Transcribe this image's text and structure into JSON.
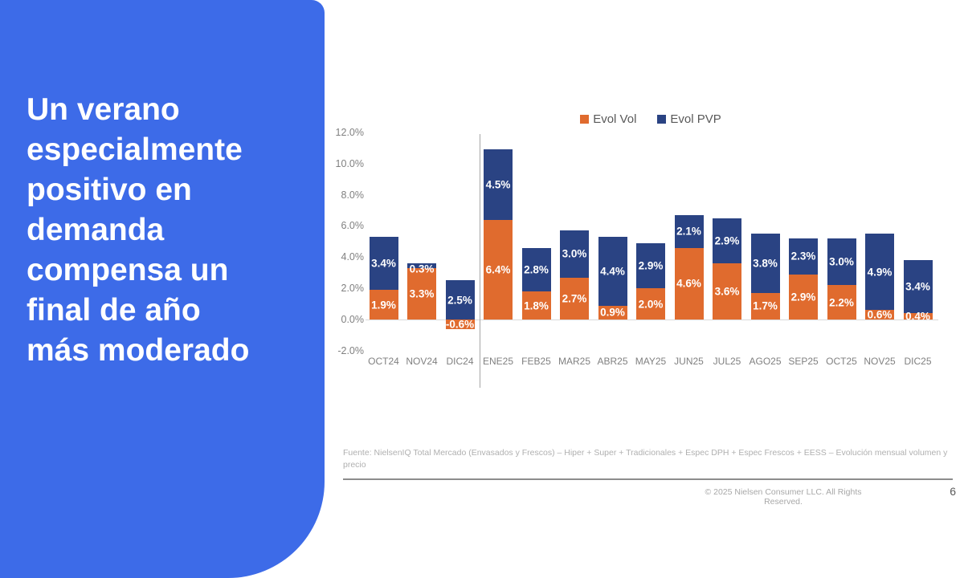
{
  "slide": {
    "title": "Un verano\nespecialmente\npositivo en\ndemanda\ncompensa un\nfinal de año\nmás moderado",
    "footer_source": "Fuente: NielsenIQ Total Mercado (Envasados y Frescos) – Hiper + Super + Tradicionales + Espec DPH + Espec Frescos + EESS – Evolución mensual volumen y precio",
    "copyright": "© 2025 Nielsen Consumer LLC. All Rights Reserved.",
    "page_number": "6"
  },
  "colors": {
    "panel_blue": "#3d6be8",
    "vol_orange": "#e06b2e",
    "pvp_navy": "#2a4383",
    "axis_grey": "#808080"
  },
  "chart_data": {
    "type": "bar",
    "stacked": true,
    "title": "",
    "xlabel": "",
    "ylabel": "",
    "ylim": [
      -2,
      12
    ],
    "grid": false,
    "legend_position": "top-center",
    "legend": [
      "Evol Vol",
      "Evol PVP"
    ],
    "y_ticks": [
      "12.0%",
      "10.0%",
      "8.0%",
      "6.0%",
      "4.0%",
      "2.0%",
      "0.0%",
      "-2.0%"
    ],
    "categories": [
      "OCT24",
      "NOV24",
      "DIC24",
      "ENE25",
      "FEB25",
      "MAR25",
      "ABR25",
      "MAY25",
      "JUN25",
      "JUL25",
      "AGO25",
      "SEP25",
      "OCT25",
      "NOV25",
      "DIC25"
    ],
    "series": [
      {
        "name": "Evol Vol",
        "color_key": "vol_orange",
        "values": [
          1.9,
          3.3,
          -0.6,
          6.4,
          1.8,
          2.7,
          0.9,
          2.0,
          4.6,
          3.6,
          1.7,
          2.9,
          2.2,
          0.6,
          0.4
        ],
        "labels": [
          "1.9%",
          "3.3%",
          "-0.6%",
          "6.4%",
          "1.8%",
          "2.7%",
          "0.9%",
          "2.0%",
          "4.6%",
          "3.6%",
          "1.7%",
          "2.9%",
          "2.2%",
          "0.6%",
          "0.4%"
        ]
      },
      {
        "name": "Evol PVP",
        "color_key": "pvp_navy",
        "values": [
          3.4,
          0.3,
          2.5,
          4.5,
          2.8,
          3.0,
          4.4,
          2.9,
          2.1,
          2.9,
          3.8,
          2.3,
          3.0,
          4.9,
          3.4
        ],
        "labels": [
          "3.4%",
          "0.3%",
          "2.5%",
          "4.5%",
          "2.8%",
          "3.0%",
          "4.4%",
          "2.9%",
          "2.1%",
          "2.9%",
          "3.8%",
          "2.3%",
          "3.0%",
          "4.9%",
          "3.4%"
        ]
      }
    ],
    "separator_after_category": "DIC24"
  }
}
